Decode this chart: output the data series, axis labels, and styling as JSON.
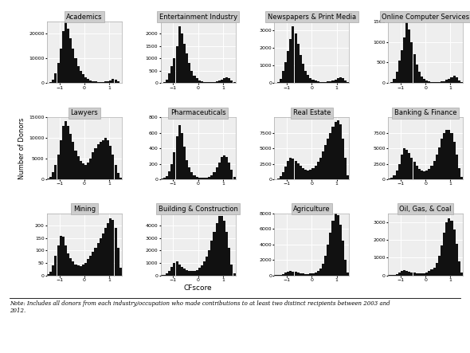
{
  "panels": [
    {
      "title": "Academics",
      "ylim": [
        0,
        25000
      ],
      "yticks": [
        0,
        10000,
        20000
      ],
      "bar_heights": [
        100,
        400,
        1500,
        4000,
        8000,
        14000,
        21000,
        25000,
        22000,
        18000,
        14000,
        10000,
        7000,
        5000,
        3500,
        2500,
        1800,
        1200,
        900,
        700,
        600,
        500,
        600,
        700,
        800,
        1200,
        1800,
        1500,
        800,
        200
      ]
    },
    {
      "title": "Entertainment Industry",
      "ylim": [
        0,
        2500
      ],
      "yticks": [
        0,
        500,
        1000,
        1500,
        2000
      ],
      "bar_heights": [
        20,
        50,
        150,
        400,
        700,
        1000,
        1500,
        2300,
        2000,
        1600,
        1200,
        800,
        500,
        300,
        200,
        120,
        80,
        60,
        50,
        40,
        50,
        60,
        80,
        100,
        150,
        200,
        250,
        200,
        100,
        30
      ]
    },
    {
      "title": "Newspapers & Print Media",
      "ylim": [
        0,
        3500
      ],
      "yticks": [
        0,
        1000,
        2000,
        3000
      ],
      "bar_heights": [
        30,
        80,
        250,
        700,
        1200,
        1800,
        2500,
        3200,
        2800,
        2200,
        1600,
        1100,
        700,
        450,
        300,
        200,
        140,
        100,
        80,
        60,
        70,
        90,
        120,
        150,
        200,
        280,
        350,
        280,
        150,
        40
      ]
    },
    {
      "title": "Online Computer Services",
      "ylim": [
        0,
        1500
      ],
      "yticks": [
        0,
        500,
        1000,
        1500
      ],
      "bar_heights": [
        10,
        30,
        100,
        280,
        550,
        800,
        1100,
        1500,
        1300,
        1000,
        700,
        450,
        280,
        170,
        100,
        65,
        45,
        35,
        30,
        25,
        30,
        40,
        55,
        75,
        100,
        140,
        180,
        140,
        70,
        20
      ]
    },
    {
      "title": "Lawyers",
      "ylim": [
        0,
        15000
      ],
      "yticks": [
        0,
        5000,
        10000,
        15000
      ],
      "bar_heights": [
        200,
        600,
        1800,
        3500,
        6000,
        9500,
        13000,
        14000,
        13000,
        11000,
        9000,
        7000,
        5500,
        4500,
        3800,
        3500,
        4000,
        5000,
        6500,
        7500,
        8500,
        9000,
        9500,
        10000,
        9500,
        8000,
        6000,
        3500,
        1500,
        300
      ]
    },
    {
      "title": "Pharmaceuticals",
      "ylim": [
        0,
        800
      ],
      "yticks": [
        0,
        200,
        400,
        600,
        800
      ],
      "bar_heights": [
        5,
        15,
        40,
        100,
        200,
        350,
        550,
        700,
        600,
        420,
        250,
        150,
        90,
        55,
        35,
        25,
        20,
        20,
        25,
        35,
        55,
        90,
        150,
        220,
        290,
        310,
        290,
        220,
        120,
        30
      ]
    },
    {
      "title": "Real Estate",
      "ylim": [
        0,
        10000
      ],
      "yticks": [
        0,
        2500,
        5000,
        7500
      ],
      "bar_heights": [
        50,
        150,
        450,
        1100,
        2000,
        3000,
        3500,
        3400,
        3000,
        2600,
        2200,
        1800,
        1500,
        1400,
        1500,
        1800,
        2200,
        2800,
        3500,
        4500,
        5500,
        6500,
        7500,
        8500,
        9200,
        9500,
        8800,
        6500,
        3500,
        700
      ]
    },
    {
      "title": "Banking & Finance",
      "ylim": [
        0,
        10000
      ],
      "yticks": [
        0,
        2500,
        5000,
        7500
      ],
      "bar_heights": [
        80,
        200,
        600,
        1400,
        2500,
        4000,
        5000,
        4800,
        4200,
        3500,
        2800,
        2200,
        1700,
        1400,
        1300,
        1400,
        1700,
        2200,
        3000,
        4000,
        5200,
        6500,
        7500,
        8000,
        8000,
        7500,
        6000,
        4000,
        1800,
        400
      ]
    },
    {
      "title": "Mining",
      "ylim": [
        0,
        250
      ],
      "yticks": [
        0,
        50,
        100,
        150,
        200
      ],
      "bar_heights": [
        5,
        15,
        40,
        80,
        120,
        160,
        155,
        120,
        90,
        70,
        55,
        45,
        40,
        38,
        42,
        50,
        65,
        80,
        95,
        110,
        130,
        150,
        170,
        190,
        210,
        230,
        225,
        190,
        110,
        30
      ]
    },
    {
      "title": "Building & Construction",
      "ylim": [
        0,
        5000
      ],
      "yticks": [
        0,
        1000,
        2000,
        3000,
        4000
      ],
      "bar_heights": [
        20,
        60,
        150,
        350,
        700,
        1000,
        1100,
        900,
        700,
        550,
        450,
        380,
        350,
        380,
        450,
        600,
        800,
        1100,
        1500,
        2000,
        2800,
        3500,
        4200,
        4800,
        4800,
        4400,
        3500,
        2200,
        900,
        180
      ]
    },
    {
      "title": "Agriculture",
      "ylim": [
        0,
        8000
      ],
      "yticks": [
        0,
        2000,
        4000,
        6000,
        8000
      ],
      "bar_heights": [
        10,
        30,
        80,
        180,
        350,
        500,
        550,
        500,
        420,
        350,
        280,
        230,
        200,
        200,
        230,
        300,
        400,
        600,
        900,
        1500,
        2500,
        4000,
        5500,
        7000,
        8000,
        7800,
        6500,
        4500,
        2000,
        400
      ]
    },
    {
      "title": "Oil, Gas, & Coal",
      "ylim": [
        0,
        3500
      ],
      "yticks": [
        0,
        1000,
        2000,
        3000
      ],
      "bar_heights": [
        5,
        15,
        40,
        90,
        170,
        250,
        280,
        260,
        210,
        170,
        140,
        120,
        110,
        110,
        130,
        170,
        230,
        320,
        450,
        700,
        1100,
        1700,
        2400,
        3000,
        3200,
        3100,
        2600,
        1800,
        800,
        160
      ]
    }
  ],
  "nrows": 3,
  "ncols": 4,
  "xlabel": "CFscore",
  "ylabel": "Number of Donors",
  "bar_color": "#111111",
  "panel_bg": "#eeeeee",
  "grid_color": "#ffffff",
  "title_bg": "#cccccc",
  "note_text": "Note: Includes all donors from each industry/occupation who made contributions to at least two distinct recipients between 2003 and\n2012.",
  "xlim": [
    -1.5,
    1.5
  ],
  "xticks": [
    -1,
    0,
    1
  ],
  "nbins": 30
}
